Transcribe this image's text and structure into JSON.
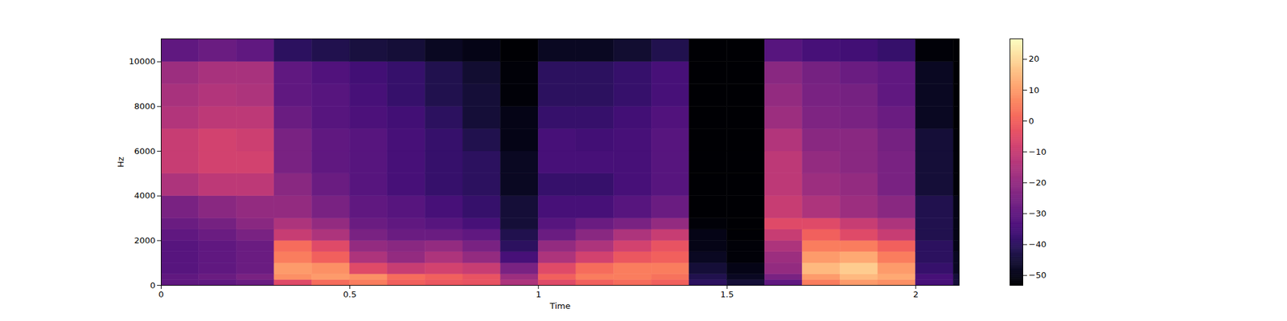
{
  "chart_data": {
    "type": "heatmap",
    "x_label": "Time",
    "y_label": "Hz",
    "color": "magma",
    "xlim": [
      0,
      2.115
    ],
    "xticks": [
      0,
      0.5,
      1,
      1.5,
      2
    ],
    "ylim": [
      0,
      11025
    ],
    "yticks": [
      0,
      2000,
      4000,
      6000,
      8000,
      10000
    ],
    "time_bins": [
      0,
      0.1,
      0.2,
      0.3,
      0.4,
      0.5,
      0.6,
      0.7,
      0.8,
      0.9,
      1.0,
      1.1,
      1.2,
      1.3,
      1.4,
      1.5,
      1.6,
      1.7,
      1.8,
      1.9,
      2.0,
      2.1,
      2.115
    ],
    "freq_bins": [
      0,
      250,
      500,
      1000,
      1500,
      2000,
      2500,
      3000,
      4000,
      5000,
      6000,
      7000,
      8000,
      9000,
      10000,
      11025
    ],
    "values": [
      [
        -30,
        -30,
        -28,
        -5,
        2,
        5,
        0,
        -2,
        -3,
        -15,
        -5,
        0,
        2,
        0,
        -40,
        -45,
        -30,
        5,
        10,
        8,
        -35,
        -45
      ],
      [
        -30,
        -28,
        -25,
        8,
        10,
        8,
        2,
        0,
        -3,
        -18,
        0,
        5,
        5,
        3,
        -42,
        -48,
        -25,
        10,
        15,
        12,
        -35,
        -45
      ],
      [
        -32,
        -30,
        -28,
        10,
        8,
        -5,
        -10,
        -8,
        -10,
        -25,
        -5,
        2,
        5,
        5,
        -45,
        -50,
        -20,
        15,
        18,
        10,
        -38,
        -48
      ],
      [
        -32,
        -30,
        -28,
        5,
        0,
        -15,
        -20,
        -15,
        -20,
        -35,
        -15,
        -8,
        -2,
        0,
        -48,
        -52,
        -18,
        10,
        12,
        5,
        -40,
        -48
      ],
      [
        -32,
        -30,
        -28,
        2,
        -5,
        -20,
        -22,
        -20,
        -25,
        -40,
        -20,
        -15,
        -8,
        -3,
        -50,
        -52,
        -15,
        5,
        5,
        0,
        -40,
        -50
      ],
      [
        -30,
        -28,
        -25,
        -10,
        -15,
        -25,
        -28,
        -28,
        -30,
        -42,
        -28,
        -22,
        -15,
        -10,
        -50,
        -53,
        -10,
        0,
        -5,
        -10,
        -42,
        -50
      ],
      [
        -28,
        -26,
        -22,
        -15,
        -20,
        -28,
        -30,
        -32,
        -35,
        -45,
        -32,
        -28,
        -25,
        -20,
        -52,
        -53,
        -5,
        -5,
        -10,
        -15,
        -42,
        -50
      ],
      [
        -25,
        -22,
        -20,
        -20,
        -25,
        -30,
        -32,
        -35,
        -38,
        -45,
        -35,
        -35,
        -32,
        -28,
        -53,
        -53,
        -10,
        -15,
        -18,
        -22,
        -42,
        -50
      ],
      [
        -15,
        -12,
        -12,
        -22,
        -28,
        -32,
        -35,
        -38,
        -40,
        -48,
        -38,
        -38,
        -35,
        -32,
        -53,
        -53,
        -12,
        -18,
        -20,
        -25,
        -45,
        -52
      ],
      [
        -10,
        -8,
        -8,
        -25,
        -30,
        -32,
        -35,
        -38,
        -40,
        -48,
        -35,
        -35,
        -35,
        -32,
        -53,
        -53,
        -12,
        -20,
        -22,
        -25,
        -45,
        -52
      ],
      [
        -10,
        -8,
        -9,
        -25,
        -30,
        -32,
        -35,
        -38,
        -42,
        -50,
        -35,
        -36,
        -35,
        -32,
        -53,
        -53,
        -14,
        -22,
        -22,
        -26,
        -45,
        -52
      ],
      [
        -14,
        -12,
        -12,
        -28,
        -32,
        -34,
        -36,
        -40,
        -45,
        -50,
        -38,
        -38,
        -36,
        -33,
        -53,
        -53,
        -18,
        -24,
        -25,
        -28,
        -48,
        -53
      ],
      [
        -16,
        -14,
        -15,
        -30,
        -32,
        -35,
        -38,
        -42,
        -45,
        -52,
        -40,
        -40,
        -38,
        -35,
        -53,
        -53,
        -20,
        -25,
        -26,
        -30,
        -48,
        -53
      ],
      [
        -18,
        -16,
        -16,
        -30,
        -33,
        -36,
        -38,
        -42,
        -46,
        -52,
        -40,
        -40,
        -38,
        -35,
        -53,
        -53,
        -22,
        -26,
        -28,
        -30,
        -48,
        -53
      ],
      [
        -30,
        -28,
        -30,
        -40,
        -42,
        -44,
        -45,
        -48,
        -50,
        -53,
        -48,
        -48,
        -46,
        -42,
        -53,
        -53,
        -32,
        -35,
        -36,
        -38,
        -52,
        -53
      ]
    ],
    "colorbar": {
      "range": [
        -53.2,
        26.6
      ],
      "ticks": [
        20,
        10,
        0,
        {
          "value": -10,
          "label": "−10"
        },
        {
          "value": -20,
          "label": "−20"
        },
        {
          "value": -30,
          "label": "−30"
        },
        {
          "value": -40,
          "label": "−40"
        },
        {
          "value": -50,
          "label": "−50"
        }
      ]
    }
  }
}
